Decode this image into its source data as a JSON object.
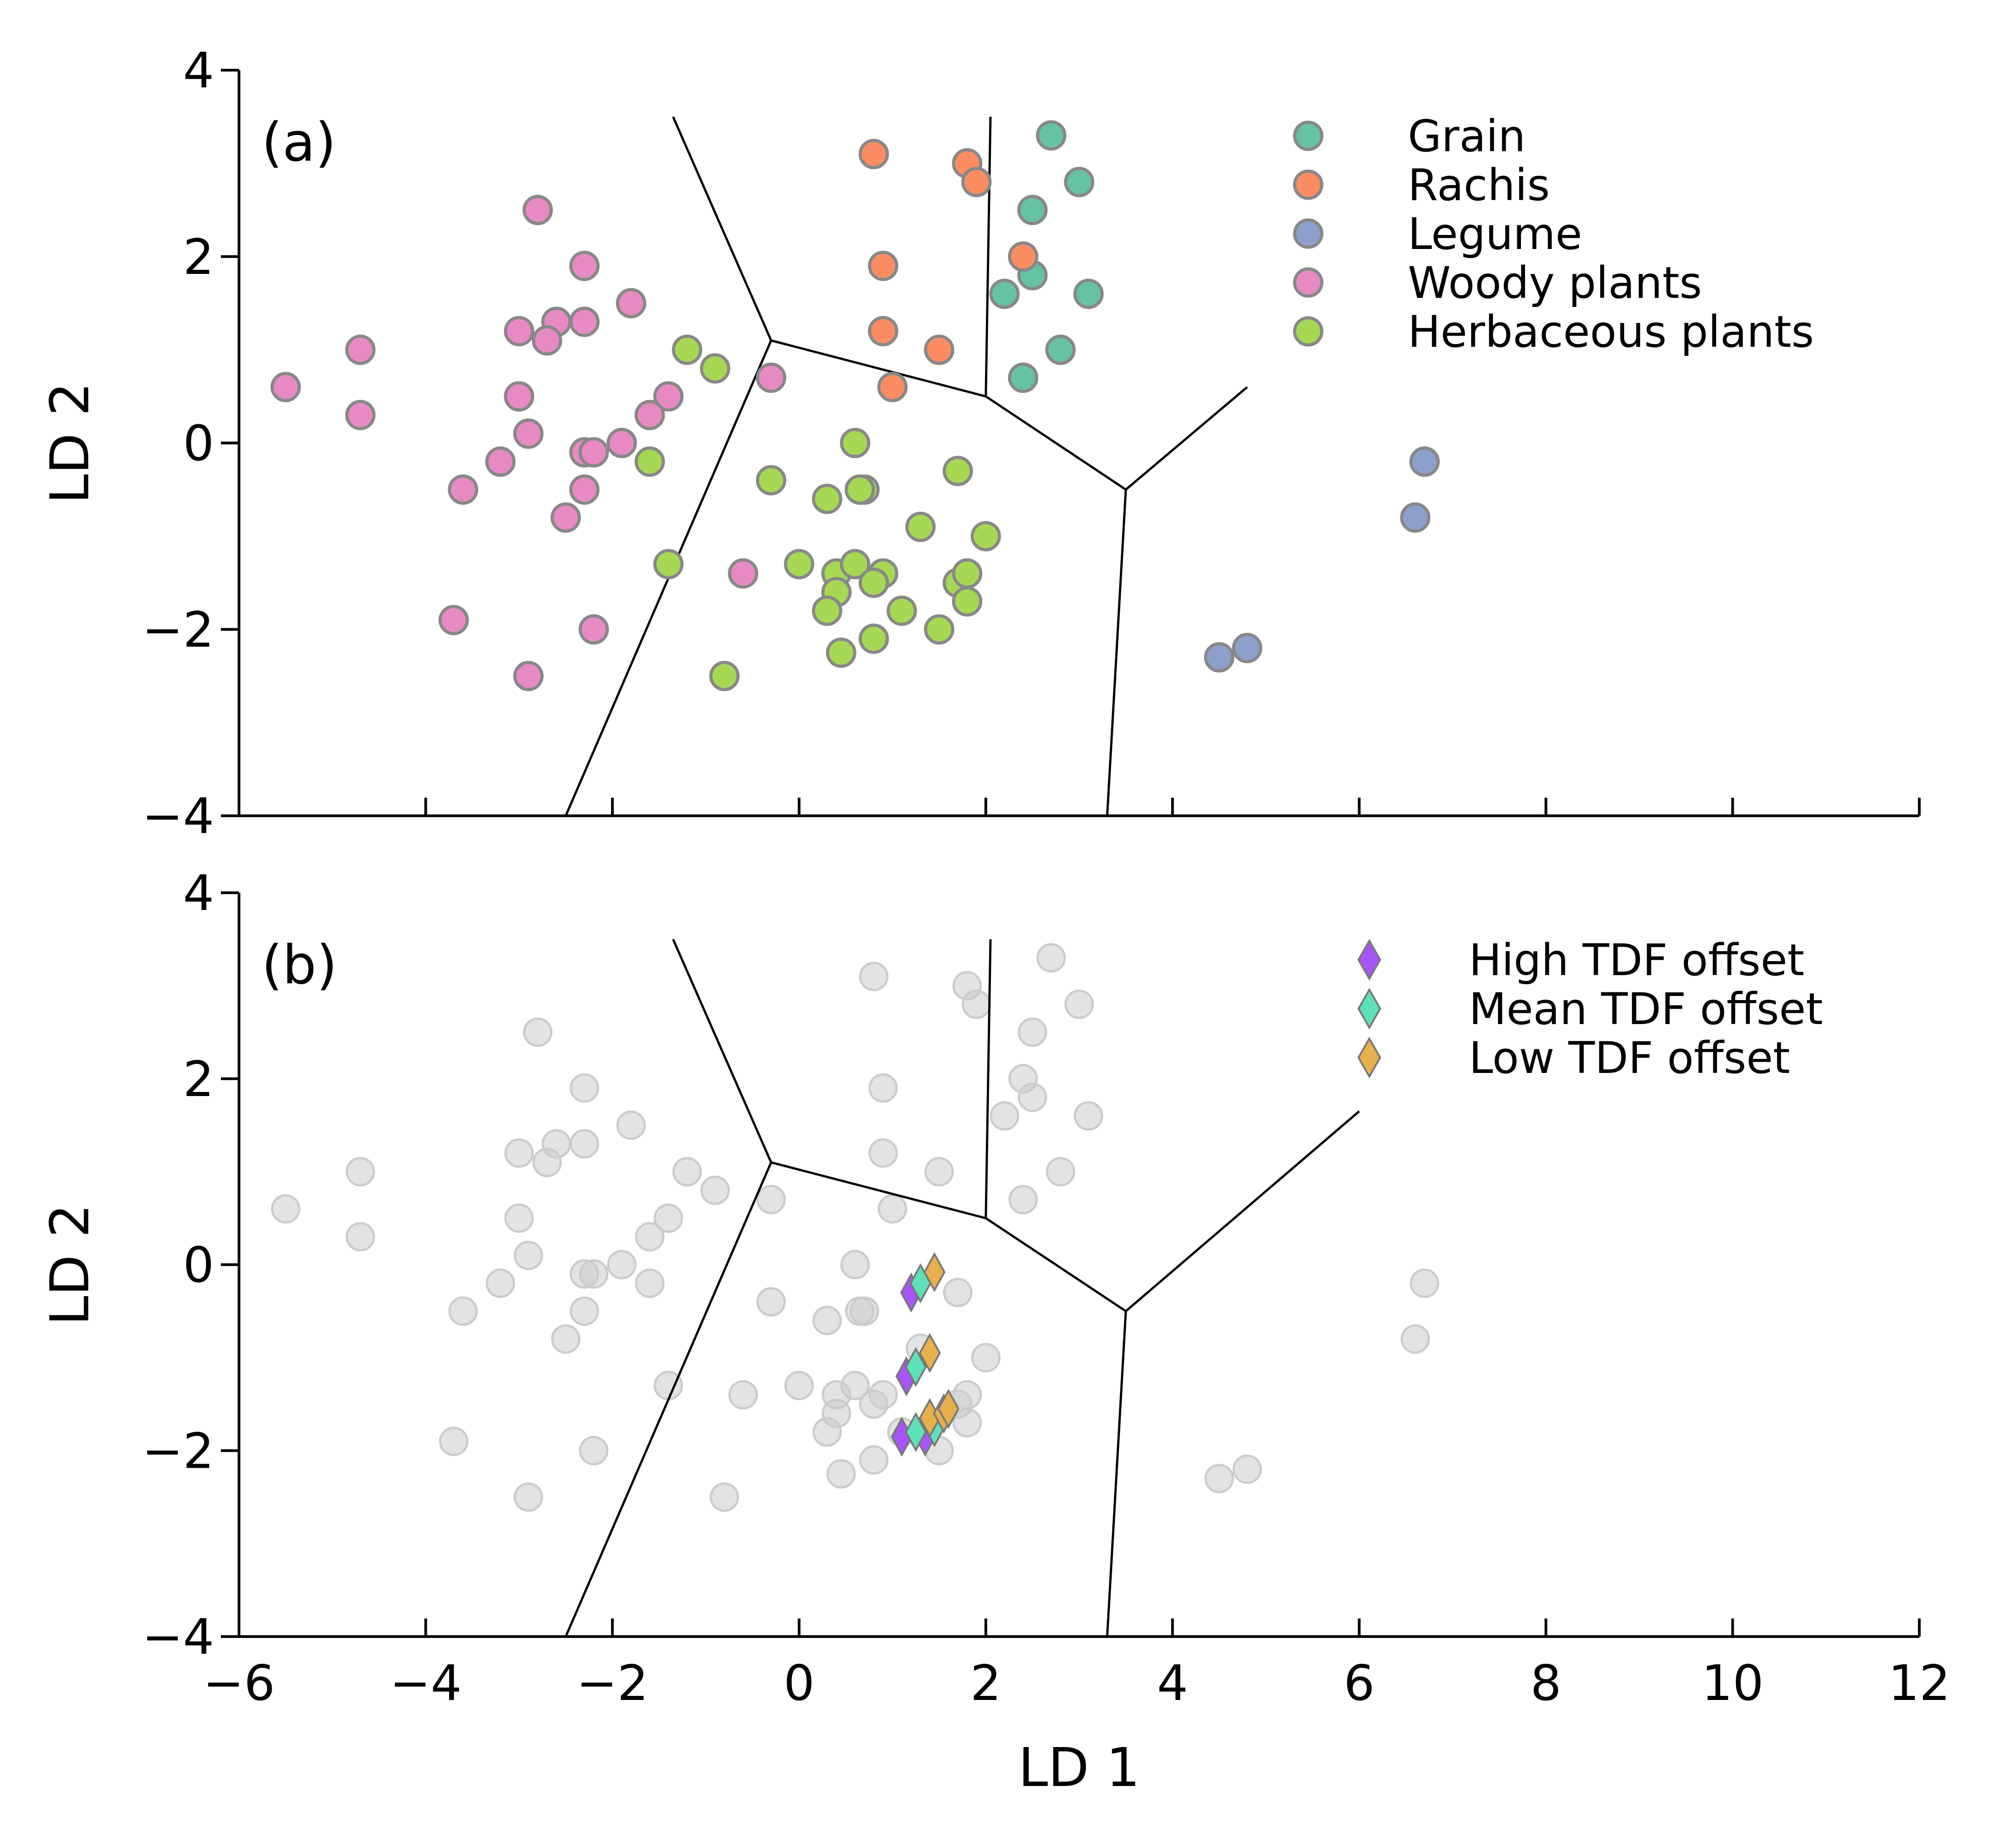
{
  "chart_data": [
    {
      "type": "scatter",
      "panel": "(a)",
      "xlabel": "",
      "ylabel": "LD 2",
      "xlim": [
        -6,
        12
      ],
      "ylim": [
        -4,
        4
      ],
      "xticks": [
        -6,
        -4,
        -2,
        0,
        2,
        4,
        6,
        8,
        10,
        12
      ],
      "yticks": [
        -4,
        -2,
        0,
        2,
        4
      ],
      "xtick_labels_visible": false,
      "legend_position": "top-right",
      "series": [
        {
          "name": "Grain",
          "color": "#66c2a5",
          "marker": "circle",
          "points": [
            [
              2.7,
              3.3
            ],
            [
              3.0,
              2.8
            ],
            [
              2.5,
              2.5
            ],
            [
              2.5,
              1.8
            ],
            [
              2.2,
              1.6
            ],
            [
              3.1,
              1.6
            ],
            [
              2.8,
              1.0
            ],
            [
              2.4,
              0.7
            ]
          ]
        },
        {
          "name": "Rachis",
          "color": "#fc8d62",
          "marker": "circle",
          "points": [
            [
              0.8,
              3.1
            ],
            [
              1.8,
              3.0
            ],
            [
              1.9,
              2.8
            ],
            [
              0.9,
              1.9
            ],
            [
              2.4,
              2.0
            ],
            [
              0.9,
              1.2
            ],
            [
              1.5,
              1.0
            ],
            [
              1.0,
              0.6
            ]
          ]
        },
        {
          "name": "Legume",
          "color": "#8da0cb",
          "marker": "circle",
          "points": [
            [
              6.7,
              -0.2
            ],
            [
              6.6,
              -0.8
            ],
            [
              4.5,
              -2.3
            ],
            [
              4.8,
              -2.2
            ]
          ]
        },
        {
          "name": "Woody plants",
          "color": "#e78ac3",
          "marker": "circle",
          "points": [
            [
              -5.5,
              0.6
            ],
            [
              -4.7,
              1.0
            ],
            [
              -4.7,
              0.3
            ],
            [
              -2.8,
              2.5
            ],
            [
              -2.3,
              1.9
            ],
            [
              -1.8,
              1.5
            ],
            [
              -2.6,
              1.3
            ],
            [
              -2.3,
              1.3
            ],
            [
              -3.0,
              1.2
            ],
            [
              -2.7,
              1.1
            ],
            [
              -3.0,
              0.5
            ],
            [
              -2.9,
              0.1
            ],
            [
              -1.4,
              0.5
            ],
            [
              -1.6,
              0.3
            ],
            [
              -3.6,
              -0.5
            ],
            [
              -3.2,
              -0.2
            ],
            [
              -2.3,
              -0.1
            ],
            [
              -2.2,
              -0.1
            ],
            [
              -1.9,
              0.0
            ],
            [
              -2.3,
              -0.5
            ],
            [
              -2.5,
              -0.8
            ],
            [
              -0.3,
              0.7
            ],
            [
              -0.6,
              -1.4
            ],
            [
              -3.7,
              -1.9
            ],
            [
              -2.2,
              -2.0
            ],
            [
              -2.9,
              -2.5
            ]
          ]
        },
        {
          "name": "Herbaceous plants",
          "color": "#a6d854",
          "marker": "circle",
          "points": [
            [
              -1.2,
              1.0
            ],
            [
              -0.9,
              0.8
            ],
            [
              -1.6,
              -0.2
            ],
            [
              -1.4,
              -1.3
            ],
            [
              -0.3,
              -0.4
            ],
            [
              0.6,
              0.0
            ],
            [
              0.3,
              -0.6
            ],
            [
              0.7,
              -0.5
            ],
            [
              0.65,
              -0.5
            ],
            [
              1.7,
              -0.3
            ],
            [
              1.3,
              -0.9
            ],
            [
              2.0,
              -1.0
            ],
            [
              0.0,
              -1.3
            ],
            [
              0.4,
              -1.4
            ],
            [
              0.6,
              -1.3
            ],
            [
              0.9,
              -1.4
            ],
            [
              0.8,
              -1.5
            ],
            [
              0.4,
              -1.6
            ],
            [
              1.1,
              -1.8
            ],
            [
              0.3,
              -1.8
            ],
            [
              1.7,
              -1.5
            ],
            [
              1.8,
              -1.4
            ],
            [
              1.8,
              -1.7
            ],
            [
              0.8,
              -2.1
            ],
            [
              1.5,
              -2.0
            ],
            [
              0.45,
              -2.25
            ],
            [
              -0.8,
              -2.5
            ]
          ]
        }
      ],
      "boundaries": [
        [
          [
            -1.35,
            3.5
          ],
          [
            -0.3,
            1.1
          ]
        ],
        [
          [
            -0.3,
            1.1
          ],
          [
            2.0,
            0.5
          ]
        ],
        [
          [
            -0.3,
            1.1
          ],
          [
            -2.5,
            -4.0
          ]
        ],
        [
          [
            2.0,
            0.5
          ],
          [
            2.05,
            3.5
          ]
        ],
        [
          [
            2.0,
            0.5
          ],
          [
            3.5,
            -0.5
          ]
        ],
        [
          [
            3.5,
            -0.5
          ],
          [
            3.3,
            -4.0
          ]
        ],
        [
          [
            3.5,
            -0.5
          ],
          [
            4.8,
            0.6
          ]
        ]
      ]
    },
    {
      "type": "scatter",
      "panel": "(b)",
      "xlabel": "LD 1",
      "ylabel": "LD 2",
      "xlim": [
        -6,
        12
      ],
      "ylim": [
        -4,
        4
      ],
      "xticks": [
        -6,
        -4,
        -2,
        0,
        2,
        4,
        6,
        8,
        10,
        12
      ],
      "yticks": [
        -4,
        -2,
        0,
        2,
        4
      ],
      "xtick_labels_visible": true,
      "legend_position": "top-right",
      "background_color": "#cccccc",
      "series": [
        {
          "name": "High TDF offset",
          "color": "#a855f7",
          "marker": "diamond",
          "points": [
            [
              1.2,
              -0.3
            ],
            [
              1.15,
              -1.2
            ],
            [
              1.1,
              -1.85
            ],
            [
              1.35,
              -1.85
            ]
          ]
        },
        {
          "name": "Mean TDF offset",
          "color": "#5ee0b8",
          "marker": "diamond",
          "points": [
            [
              1.3,
              -0.2
            ],
            [
              1.25,
              -1.1
            ],
            [
              1.25,
              -1.8
            ],
            [
              1.45,
              -1.75
            ]
          ]
        },
        {
          "name": "Low TDF offset",
          "color": "#e8b04c",
          "marker": "diamond",
          "points": [
            [
              1.45,
              -0.08
            ],
            [
              1.4,
              -0.95
            ],
            [
              1.4,
              -1.65
            ],
            [
              1.55,
              -1.6
            ],
            [
              1.6,
              -1.55
            ]
          ]
        }
      ],
      "boundaries": [
        [
          [
            -1.35,
            3.5
          ],
          [
            -0.3,
            1.1
          ]
        ],
        [
          [
            -0.3,
            1.1
          ],
          [
            2.0,
            0.5
          ]
        ],
        [
          [
            -0.3,
            1.1
          ],
          [
            -2.5,
            -4.0
          ]
        ],
        [
          [
            2.0,
            0.5
          ],
          [
            2.05,
            3.5
          ]
        ],
        [
          [
            2.0,
            0.5
          ],
          [
            3.5,
            -0.5
          ]
        ],
        [
          [
            3.5,
            -0.5
          ],
          [
            3.3,
            -4.0
          ]
        ],
        [
          [
            3.5,
            -0.5
          ],
          [
            6.0,
            1.65
          ]
        ]
      ]
    }
  ]
}
